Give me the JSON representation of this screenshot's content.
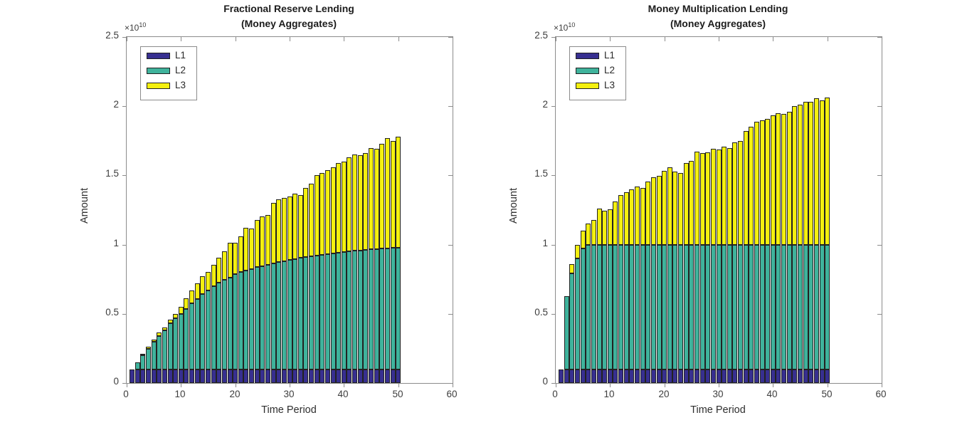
{
  "charts": [
    {
      "title_line1": "Fractional Reserve Lending",
      "title_line2": "(Money Aggregates)",
      "ylabel": "Amount",
      "xlabel": "Time Period",
      "exp_mult": "×10",
      "exp_power": "10",
      "yticks": [
        "0",
        "0.5",
        "1",
        "1.5",
        "2",
        "2.5"
      ],
      "xticks": [
        "0",
        "10",
        "20",
        "30",
        "40",
        "50",
        "60"
      ],
      "legend_labels": [
        "L1",
        "L2",
        "L3"
      ]
    },
    {
      "title_line1": "Money Multiplication Lending",
      "title_line2": "(Money Aggregates)",
      "ylabel": "Amount",
      "xlabel": "Time Period",
      "exp_mult": "×10",
      "exp_power": "10",
      "yticks": [
        "0",
        "0.5",
        "1",
        "1.5",
        "2",
        "2.5"
      ],
      "xticks": [
        "0",
        "10",
        "20",
        "30",
        "40",
        "50",
        "60"
      ],
      "legend_labels": [
        "L1",
        "L2",
        "L3"
      ]
    }
  ],
  "colors": {
    "l1": "#372f90",
    "l2": "#3fb39c",
    "l3": "#f4f00f",
    "bar_edge": "#222222",
    "axis": "#8c8c8c",
    "text": "#3d3d3d"
  },
  "chart_data": [
    {
      "type": "bar",
      "stacked": true,
      "title": "Fractional Reserve Lending (Money Aggregates)",
      "xlabel": "Time Period",
      "ylabel": "Amount",
      "xlim": [
        0,
        60
      ],
      "ylim": [
        0,
        25000000000
      ],
      "value_scale": 10000000000,
      "legend_position": "top-left-inside",
      "grid": false,
      "x": [
        1,
        2,
        3,
        4,
        5,
        6,
        7,
        8,
        9,
        10,
        11,
        12,
        13,
        14,
        15,
        16,
        17,
        18,
        19,
        20,
        21,
        22,
        23,
        24,
        25,
        26,
        27,
        28,
        29,
        30,
        31,
        32,
        33,
        34,
        35,
        36,
        37,
        38,
        39,
        40,
        41,
        42,
        43,
        44,
        45,
        46,
        47,
        48,
        49,
        50
      ],
      "series": [
        {
          "name": "L1",
          "color": "#372f90",
          "values": [
            0.1,
            0.1,
            0.1,
            0.1,
            0.1,
            0.1,
            0.1,
            0.1,
            0.1,
            0.1,
            0.1,
            0.1,
            0.1,
            0.1,
            0.1,
            0.1,
            0.1,
            0.1,
            0.1,
            0.1,
            0.1,
            0.1,
            0.1,
            0.1,
            0.1,
            0.1,
            0.1,
            0.1,
            0.1,
            0.1,
            0.1,
            0.1,
            0.1,
            0.1,
            0.1,
            0.1,
            0.1,
            0.1,
            0.1,
            0.1,
            0.1,
            0.1,
            0.1,
            0.1,
            0.1,
            0.1,
            0.1,
            0.1,
            0.1,
            0.1
          ]
        },
        {
          "name": "L2",
          "color": "#3fb39c",
          "values": [
            0.0,
            0.048,
            0.103,
            0.148,
            0.2,
            0.241,
            0.281,
            0.333,
            0.369,
            0.397,
            0.437,
            0.477,
            0.506,
            0.544,
            0.57,
            0.601,
            0.627,
            0.644,
            0.662,
            0.688,
            0.701,
            0.713,
            0.725,
            0.736,
            0.746,
            0.756,
            0.765,
            0.774,
            0.782,
            0.79,
            0.797,
            0.804,
            0.811,
            0.817,
            0.823,
            0.828,
            0.833,
            0.838,
            0.843,
            0.847,
            0.851,
            0.855,
            0.859,
            0.862,
            0.865,
            0.868,
            0.871,
            0.874,
            0.877,
            0.88
          ]
        },
        {
          "name": "L3",
          "color": "#f4f00f",
          "values": [
            0.0,
            0.0,
            0.007,
            0.017,
            0.012,
            0.023,
            0.022,
            0.026,
            0.028,
            0.052,
            0.074,
            0.093,
            0.112,
            0.13,
            0.135,
            0.152,
            0.178,
            0.208,
            0.251,
            0.228,
            0.261,
            0.307,
            0.292,
            0.344,
            0.359,
            0.359,
            0.435,
            0.451,
            0.458,
            0.46,
            0.473,
            0.456,
            0.499,
            0.523,
            0.577,
            0.592,
            0.607,
            0.622,
            0.647,
            0.653,
            0.679,
            0.695,
            0.686,
            0.698,
            0.735,
            0.722,
            0.759,
            0.796,
            0.773,
            0.8
          ]
        }
      ],
      "stack_totals": [
        0.1,
        0.148,
        0.21,
        0.265,
        0.312,
        0.364,
        0.403,
        0.459,
        0.497,
        0.549,
        0.611,
        0.67,
        0.718,
        0.774,
        0.805,
        0.853,
        0.905,
        0.952,
        1.013,
        1.016,
        1.062,
        1.12,
        1.117,
        1.18,
        1.205,
        1.215,
        1.3,
        1.325,
        1.34,
        1.35,
        1.37,
        1.36,
        1.41,
        1.44,
        1.5,
        1.52,
        1.54,
        1.56,
        1.59,
        1.6,
        1.63,
        1.65,
        1.645,
        1.66,
        1.7,
        1.69,
        1.73,
        1.77,
        1.75,
        1.78
      ]
    },
    {
      "type": "bar",
      "stacked": true,
      "title": "Money Multiplication Lending (Money Aggregates)",
      "xlabel": "Time Period",
      "ylabel": "Amount",
      "xlim": [
        0,
        60
      ],
      "ylim": [
        0,
        25000000000
      ],
      "value_scale": 10000000000,
      "legend_position": "top-left-inside",
      "grid": false,
      "x": [
        1,
        2,
        3,
        4,
        5,
        6,
        7,
        8,
        9,
        10,
        11,
        12,
        13,
        14,
        15,
        16,
        17,
        18,
        19,
        20,
        21,
        22,
        23,
        24,
        25,
        26,
        27,
        28,
        29,
        30,
        31,
        32,
        33,
        34,
        35,
        36,
        37,
        38,
        39,
        40,
        41,
        42,
        43,
        44,
        45,
        46,
        47,
        48,
        49,
        50
      ],
      "series": [
        {
          "name": "L1",
          "color": "#372f90",
          "values": [
            0.1,
            0.1,
            0.1,
            0.1,
            0.1,
            0.1,
            0.1,
            0.1,
            0.1,
            0.1,
            0.1,
            0.1,
            0.1,
            0.1,
            0.1,
            0.1,
            0.1,
            0.1,
            0.1,
            0.1,
            0.1,
            0.1,
            0.1,
            0.1,
            0.1,
            0.1,
            0.1,
            0.1,
            0.1,
            0.1,
            0.1,
            0.1,
            0.1,
            0.1,
            0.1,
            0.1,
            0.1,
            0.1,
            0.1,
            0.1,
            0.1,
            0.1,
            0.1,
            0.1,
            0.1,
            0.1,
            0.1,
            0.1,
            0.1,
            0.1
          ]
        },
        {
          "name": "L2",
          "color": "#3fb39c",
          "values": [
            0.0,
            0.53,
            0.69,
            0.8,
            0.87,
            0.9,
            0.9,
            0.9,
            0.9,
            0.9,
            0.9,
            0.9,
            0.9,
            0.9,
            0.9,
            0.9,
            0.9,
            0.9,
            0.9,
            0.9,
            0.9,
            0.9,
            0.9,
            0.9,
            0.9,
            0.9,
            0.9,
            0.9,
            0.9,
            0.9,
            0.9,
            0.9,
            0.9,
            0.9,
            0.9,
            0.9,
            0.9,
            0.9,
            0.9,
            0.9,
            0.9,
            0.9,
            0.9,
            0.9,
            0.9,
            0.9,
            0.9,
            0.9,
            0.9,
            0.9
          ]
        },
        {
          "name": "L3",
          "color": "#f4f00f",
          "values": [
            0.0,
            0.0,
            0.07,
            0.1,
            0.13,
            0.15,
            0.18,
            0.26,
            0.245,
            0.255,
            0.31,
            0.36,
            0.38,
            0.4,
            0.42,
            0.41,
            0.454,
            0.487,
            0.495,
            0.535,
            0.557,
            0.526,
            0.518,
            0.592,
            0.604,
            0.67,
            0.66,
            0.665,
            0.69,
            0.686,
            0.71,
            0.7,
            0.74,
            0.75,
            0.82,
            0.85,
            0.89,
            0.9,
            0.91,
            0.935,
            0.95,
            0.945,
            0.96,
            1.0,
            1.01,
            1.03,
            1.03,
            1.06,
            1.04,
            1.065
          ]
        }
      ],
      "stack_totals": [
        0.1,
        0.63,
        0.86,
        1.0,
        1.1,
        1.15,
        1.18,
        1.26,
        1.245,
        1.255,
        1.31,
        1.36,
        1.38,
        1.4,
        1.42,
        1.41,
        1.454,
        1.487,
        1.495,
        1.535,
        1.557,
        1.526,
        1.518,
        1.592,
        1.604,
        1.67,
        1.66,
        1.665,
        1.69,
        1.686,
        1.71,
        1.7,
        1.74,
        1.75,
        1.82,
        1.85,
        1.89,
        1.9,
        1.91,
        1.935,
        1.95,
        1.945,
        1.96,
        2.0,
        2.01,
        2.03,
        2.03,
        2.06,
        2.04,
        2.065
      ]
    }
  ]
}
